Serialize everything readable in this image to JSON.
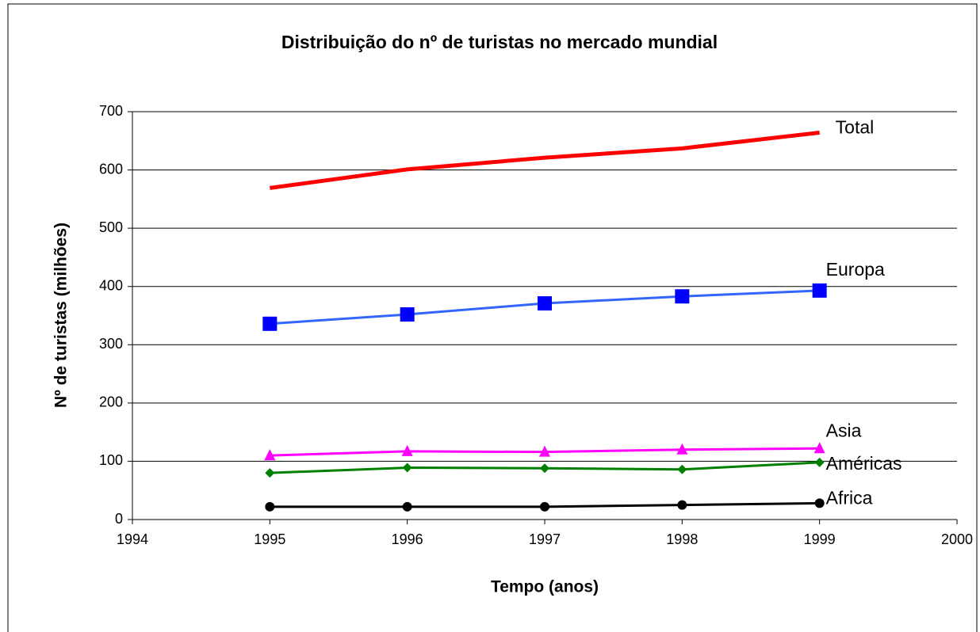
{
  "chart_data": {
    "type": "line",
    "title": "Distribuição do nº de turistas no mercado mundial",
    "x_label": "Tempo (anos)",
    "y_label": "Nº de turistas (milhões)",
    "x": [
      1995,
      1996,
      1997,
      1998,
      1999
    ],
    "xlim": [
      1994,
      2000
    ],
    "xticks": [
      1994,
      1995,
      1996,
      1997,
      1998,
      1999,
      2000
    ],
    "ylim": [
      0,
      700
    ],
    "yticks": [
      0,
      100,
      200,
      300,
      400,
      500,
      600,
      700
    ],
    "grid": true,
    "series": [
      {
        "name": "Total",
        "color": "#ff0000",
        "marker": "none",
        "values": [
          569,
          601,
          621,
          637,
          664
        ]
      },
      {
        "name": "Europa",
        "color": "#3366ff",
        "marker": "square",
        "marker_color": "#0000ff",
        "values": [
          336,
          352,
          371,
          383,
          393
        ]
      },
      {
        "name": "Asia",
        "color": "#ff00ff",
        "marker": "triangle",
        "values": [
          110,
          117,
          116,
          120,
          122
        ]
      },
      {
        "name": "Américas",
        "color": "#008000",
        "marker": "diamond",
        "values": [
          80,
          89,
          88,
          86,
          98
        ]
      },
      {
        "name": "Africa",
        "color": "#000000",
        "marker": "circle",
        "values": [
          22,
          22,
          22,
          25,
          28
        ]
      }
    ]
  }
}
